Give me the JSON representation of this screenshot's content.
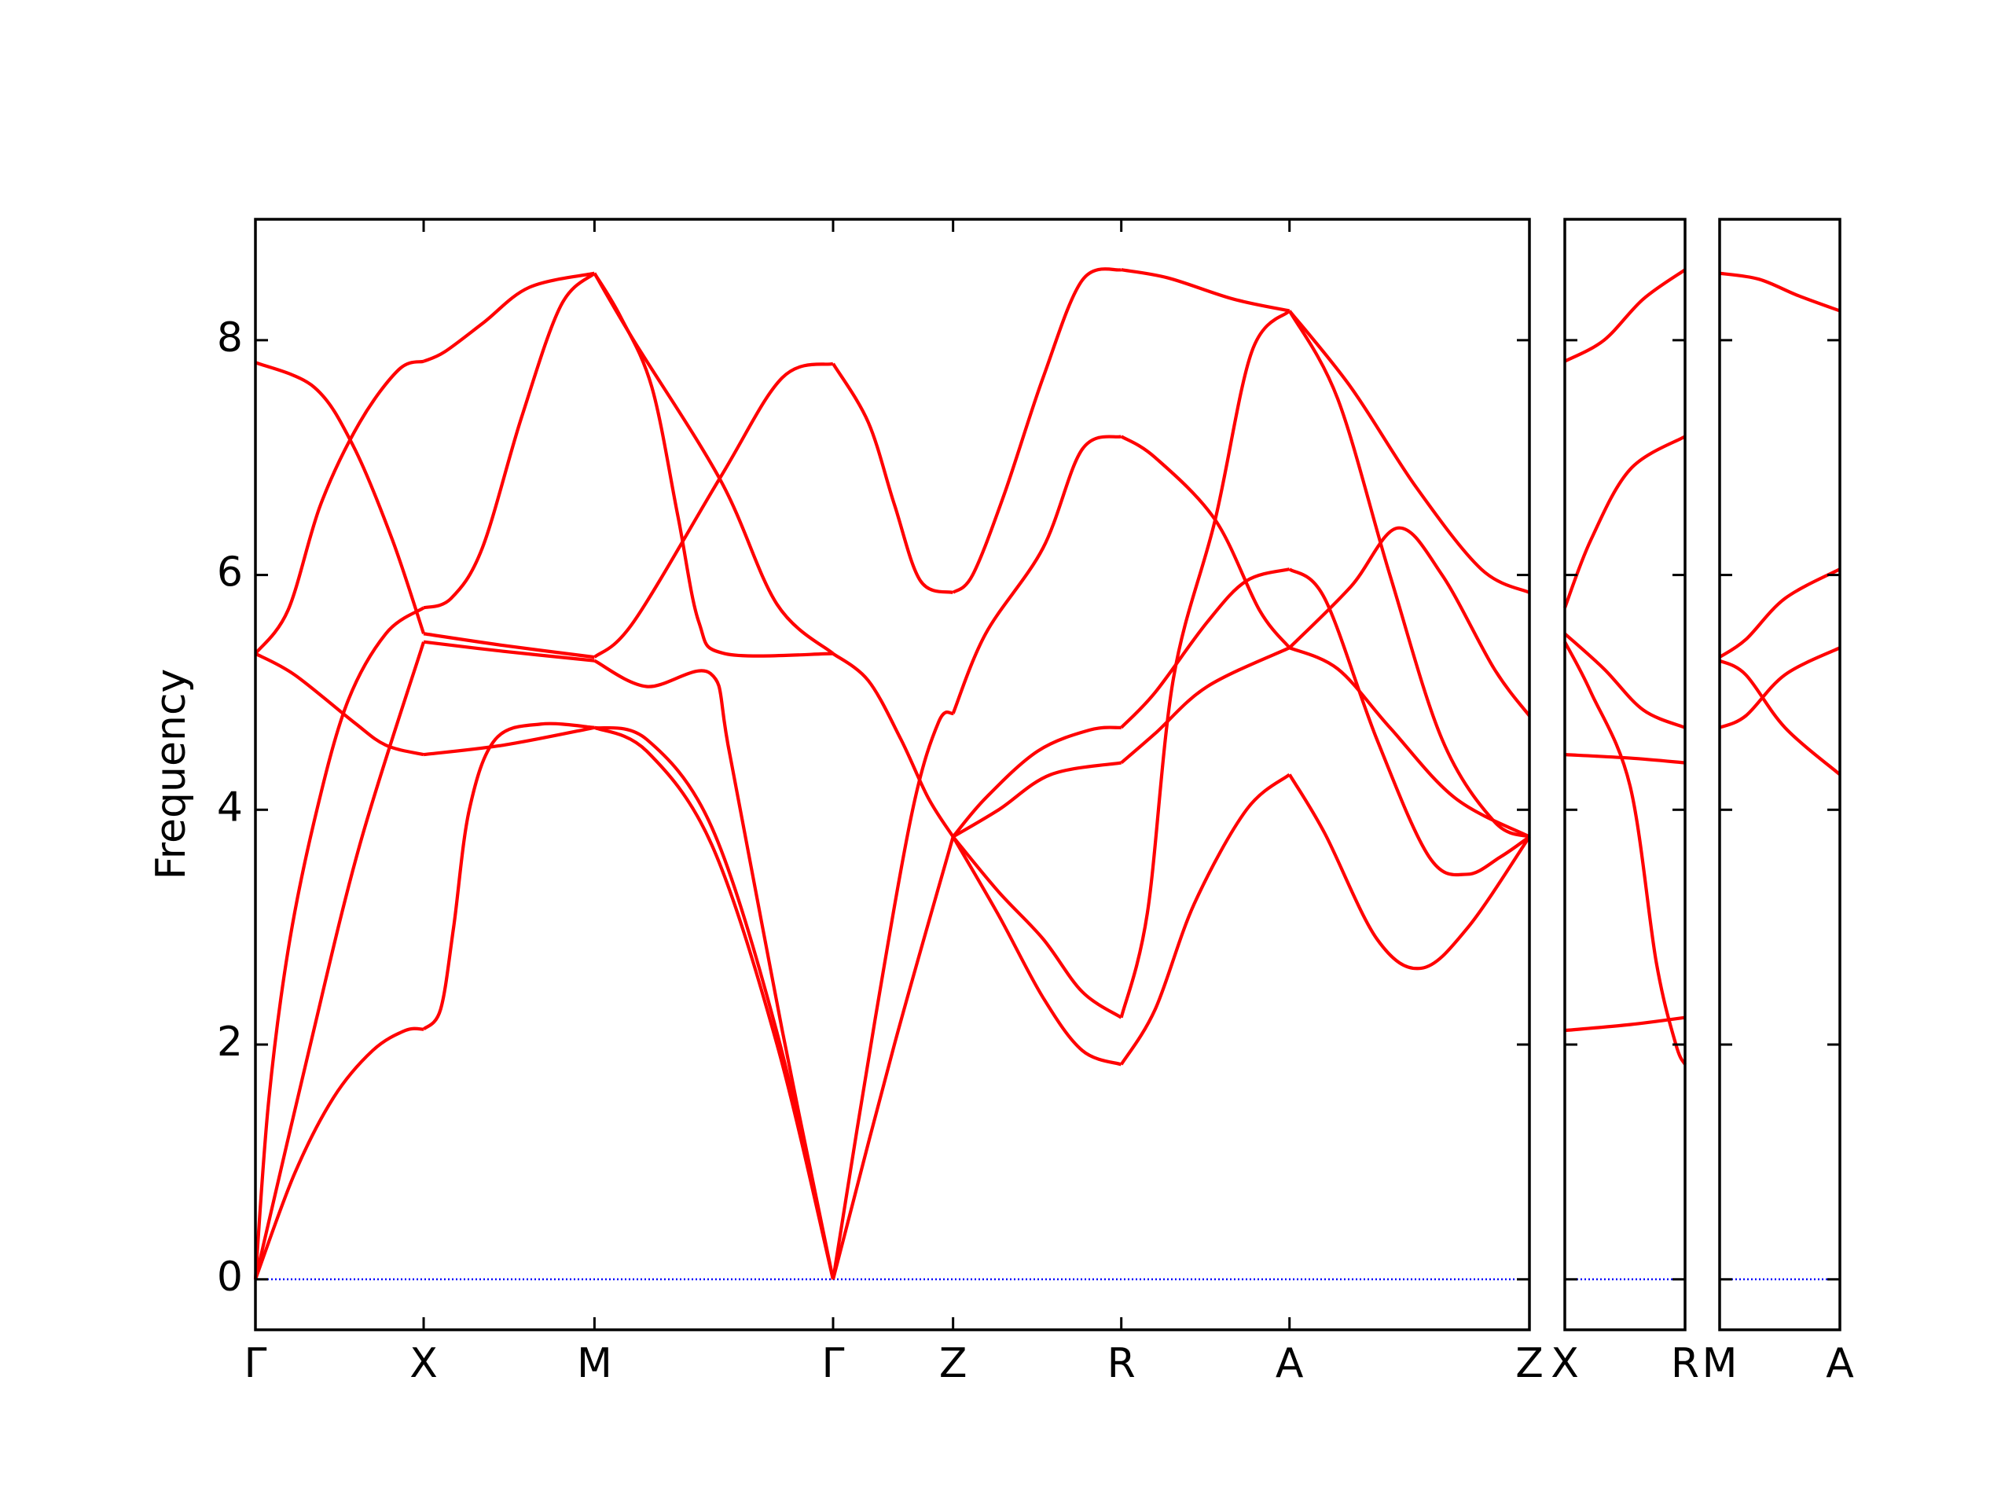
{
  "chart_data": [
    {
      "type": "line",
      "ylabel": "Frequency",
      "ylim": [
        -0.43,
        9.03
      ],
      "yticks": [
        0,
        2,
        4,
        6,
        8
      ],
      "zero_line_color": "#0000ff",
      "xlim": [
        0,
        9.77
      ],
      "xticks": [
        {
          "value": 0,
          "label": "Γ"
        },
        {
          "value": 1.29,
          "label": "X"
        },
        {
          "value": 2.6,
          "label": "M"
        },
        {
          "value": 4.43,
          "label": "Γ"
        },
        {
          "value": 5.35,
          "label": "Z"
        },
        {
          "value": 6.64,
          "label": "R"
        },
        {
          "value": 7.93,
          "label": "A"
        },
        {
          "value": 9.77,
          "label": "Z"
        }
      ],
      "series": [
        {
          "color": "#ff0000",
          "x": [
            0,
            0.45,
            0.75,
            1.05,
            1.29
          ],
          "values": [
            7.81,
            7.6,
            7.1,
            6.3,
            5.5
          ]
        },
        {
          "color": "#ff0000",
          "x": [
            0,
            0.25,
            0.5,
            0.8,
            1.1,
            1.29
          ],
          "values": [
            5.33,
            5.7,
            6.6,
            7.3,
            7.75,
            7.82
          ]
        },
        {
          "color": "#ff0000",
          "x": [
            0,
            0.3,
            0.75,
            1.0,
            1.29
          ],
          "values": [
            5.33,
            5.15,
            4.75,
            4.55,
            4.47
          ]
        },
        {
          "color": "#ff0000",
          "x": [
            0,
            0.1,
            0.25,
            0.45,
            0.7,
            1.0,
            1.29
          ],
          "values": [
            0,
            1.5,
            2.8,
            3.9,
            4.9,
            5.5,
            5.72
          ]
        },
        {
          "color": "#ff0000",
          "x": [
            0,
            0.4,
            0.8,
            1.29
          ],
          "values": [
            0,
            1.9,
            3.7,
            5.43
          ]
        },
        {
          "color": "#ff0000",
          "x": [
            0,
            0.3,
            0.6,
            0.9,
            1.15,
            1.29
          ],
          "values": [
            0,
            0.9,
            1.55,
            1.95,
            2.12,
            2.13
          ]
        },
        {
          "color": "#ff0000",
          "x": [
            1.29,
            1.45,
            1.75,
            2.1,
            2.6
          ],
          "values": [
            7.82,
            7.9,
            8.15,
            8.45,
            8.57
          ]
        },
        {
          "color": "#ff0000",
          "x": [
            1.29,
            1.5,
            1.74,
            2.04,
            2.34,
            2.6
          ],
          "values": [
            5.72,
            5.8,
            6.23,
            7.34,
            8.29,
            8.57
          ]
        },
        {
          "color": "#ff0000",
          "x": [
            1.29,
            1.9,
            2.6
          ],
          "values": [
            5.5,
            5.4,
            5.3
          ]
        },
        {
          "color": "#ff0000",
          "x": [
            1.29,
            1.9,
            2.6
          ],
          "values": [
            5.43,
            5.35,
            5.27
          ]
        },
        {
          "color": "#ff0000",
          "x": [
            1.29,
            1.9,
            2.6
          ],
          "values": [
            4.47,
            4.55,
            4.7
          ]
        },
        {
          "color": "#ff0000",
          "x": [
            1.29,
            1.42,
            1.52,
            1.64,
            1.84,
            2.19,
            2.6
          ],
          "values": [
            2.13,
            2.3,
            3.0,
            4.0,
            4.6,
            4.73,
            4.7
          ]
        },
        {
          "color": "#ff0000",
          "x": [
            2.6,
            2.8,
            3.04,
            3.24,
            3.4,
            3.6,
            4.43
          ],
          "values": [
            8.57,
            8.2,
            7.6,
            6.5,
            5.6,
            5.33,
            5.33
          ]
        },
        {
          "color": "#ff0000",
          "x": [
            2.6,
            2.9,
            3.57,
            4.0,
            4.43
          ],
          "values": [
            8.57,
            8.0,
            6.8,
            5.75,
            5.33
          ]
        },
        {
          "color": "#ff0000",
          "x": [
            2.6,
            2.9,
            3.57,
            4.04,
            4.43
          ],
          "values": [
            5.3,
            5.6,
            6.84,
            7.68,
            7.8
          ]
        },
        {
          "color": "#ff0000",
          "x": [
            2.6,
            3.0,
            3.49,
            3.64,
            4.04,
            4.43
          ],
          "values": [
            5.27,
            5.05,
            5.16,
            4.46,
            2.12,
            0
          ]
        },
        {
          "color": "#ff0000",
          "x": [
            2.6,
            3.0,
            3.5,
            4.0,
            4.43
          ],
          "values": [
            4.7,
            4.5,
            3.7,
            2.0,
            0
          ]
        },
        {
          "color": "#ff0000",
          "x": [
            2.6,
            3.0,
            3.5,
            4.0,
            4.43
          ],
          "values": [
            4.7,
            4.6,
            3.85,
            2.1,
            0
          ]
        },
        {
          "color": "#ff0000",
          "x": [
            4.43,
            4.7,
            4.9,
            5.1,
            5.35
          ],
          "values": [
            7.8,
            7.3,
            6.6,
            5.95,
            5.85
          ]
        },
        {
          "color": "#ff0000",
          "x": [
            4.43,
            4.7,
            4.95,
            5.16,
            5.35
          ],
          "values": [
            5.33,
            5.1,
            4.6,
            4.1,
            3.77
          ]
        },
        {
          "color": "#ff0000",
          "x": [
            4.43,
            4.75,
            5.04,
            5.24,
            5.35
          ],
          "values": [
            0,
            2.2,
            4.0,
            4.75,
            4.82
          ]
        },
        {
          "color": "#ff0000",
          "x": [
            4.43,
            4.9,
            5.35
          ],
          "values": [
            0,
            2.0,
            3.77
          ]
        },
        {
          "color": "#ff0000",
          "x": [
            5.35,
            5.5,
            5.74,
            6.04,
            6.34,
            6.64
          ],
          "values": [
            5.85,
            6.0,
            6.68,
            7.68,
            8.51,
            8.6
          ]
        },
        {
          "color": "#ff0000",
          "x": [
            5.35,
            5.6,
            6.04,
            6.34,
            6.64
          ],
          "values": [
            4.82,
            5.5,
            6.23,
            7.07,
            7.18
          ]
        },
        {
          "color": "#ff0000",
          "x": [
            5.35,
            5.6,
            6.0,
            6.4,
            6.64
          ],
          "values": [
            3.77,
            4.1,
            4.5,
            4.68,
            4.7
          ]
        },
        {
          "color": "#ff0000",
          "x": [
            5.35,
            5.7,
            6.1,
            6.64
          ],
          "values": [
            3.77,
            4.0,
            4.3,
            4.4
          ]
        },
        {
          "color": "#ff0000",
          "x": [
            5.35,
            5.7,
            6.04,
            6.34,
            6.64
          ],
          "values": [
            3.77,
            3.3,
            2.9,
            2.45,
            2.23
          ]
        },
        {
          "color": "#ff0000",
          "x": [
            5.35,
            5.7,
            6.04,
            6.34,
            6.64
          ],
          "values": [
            3.77,
            3.1,
            2.4,
            1.95,
            1.83
          ]
        },
        {
          "color": "#ff0000",
          "x": [
            6.64,
            7.0,
            7.5,
            7.93
          ],
          "values": [
            8.6,
            8.53,
            8.35,
            8.25
          ]
        },
        {
          "color": "#ff0000",
          "x": [
            6.64,
            6.9,
            7.36,
            7.7,
            7.93
          ],
          "values": [
            7.18,
            7.0,
            6.47,
            5.7,
            5.38
          ]
        },
        {
          "color": "#ff0000",
          "x": [
            6.64,
            6.84,
            7.04,
            7.36,
            7.64,
            7.93
          ],
          "values": [
            2.23,
            3.12,
            5.12,
            6.47,
            7.9,
            8.25
          ]
        },
        {
          "color": "#ff0000",
          "x": [
            6.64,
            6.9,
            7.3,
            7.6,
            7.93
          ],
          "values": [
            4.7,
            5.0,
            5.6,
            5.95,
            6.05
          ]
        },
        {
          "color": "#ff0000",
          "x": [
            6.64,
            6.9,
            7.3,
            7.93
          ],
          "values": [
            4.4,
            4.65,
            5.05,
            5.38
          ]
        },
        {
          "color": "#ff0000",
          "x": [
            6.64,
            6.9,
            7.2,
            7.6,
            7.93
          ],
          "values": [
            1.83,
            2.3,
            3.2,
            4.0,
            4.3
          ]
        },
        {
          "color": "#ff0000",
          "x": [
            7.93,
            8.4,
            8.9,
            9.4,
            9.77
          ],
          "values": [
            8.25,
            7.6,
            6.75,
            6.05,
            5.85
          ]
        },
        {
          "color": "#ff0000",
          "x": [
            7.93,
            8.3,
            8.7,
            9.1,
            9.5,
            9.77
          ],
          "values": [
            8.25,
            7.5,
            6.0,
            4.6,
            3.9,
            3.77
          ]
        },
        {
          "color": "#ff0000",
          "x": [
            7.93,
            8.4,
            8.76,
            9.1,
            9.5,
            9.77
          ],
          "values": [
            5.38,
            5.9,
            6.4,
            6.0,
            5.2,
            4.8
          ]
        },
        {
          "color": "#ff0000",
          "x": [
            7.93,
            8.2,
            8.6,
            9.0,
            9.29,
            9.55,
            9.77
          ],
          "values": [
            6.05,
            5.8,
            4.6,
            3.6,
            3.45,
            3.6,
            3.77
          ]
        },
        {
          "color": "#ff0000",
          "x": [
            7.93,
            8.3,
            8.7,
            9.2,
            9.77
          ],
          "values": [
            5.38,
            5.2,
            4.7,
            4.1,
            3.77
          ]
        },
        {
          "color": "#ff0000",
          "x": [
            7.93,
            8.2,
            8.6,
            8.94,
            9.3,
            9.77
          ],
          "values": [
            4.3,
            3.8,
            2.9,
            2.65,
            3.0,
            3.77
          ]
        }
      ]
    },
    {
      "type": "line",
      "zero_line_color": "#0000ff",
      "xlim": [
        0,
        0.92
      ],
      "xticks": [
        {
          "value": 0,
          "label": "X"
        },
        {
          "value": 0.92,
          "label": "R"
        }
      ],
      "series": [
        {
          "color": "#ff0000",
          "x": [
            0,
            0.3,
            0.6,
            0.92
          ],
          "values": [
            7.82,
            8.0,
            8.35,
            8.6
          ]
        },
        {
          "color": "#ff0000",
          "x": [
            0,
            0.2,
            0.5,
            0.92
          ],
          "values": [
            5.72,
            6.3,
            6.9,
            7.18
          ]
        },
        {
          "color": "#ff0000",
          "x": [
            0,
            0.3,
            0.6,
            0.92
          ],
          "values": [
            5.5,
            5.2,
            4.85,
            4.7
          ]
        },
        {
          "color": "#ff0000",
          "x": [
            0,
            0.2,
            0.5,
            0.7,
            0.85,
            0.92
          ],
          "values": [
            5.43,
            5.0,
            4.2,
            2.7,
            2.0,
            1.83
          ]
        },
        {
          "color": "#ff0000",
          "x": [
            0,
            0.5,
            0.92
          ],
          "values": [
            4.47,
            4.44,
            4.4
          ]
        },
        {
          "color": "#ff0000",
          "x": [
            0,
            0.5,
            0.92
          ],
          "values": [
            2.12,
            2.17,
            2.23
          ]
        }
      ]
    },
    {
      "type": "line",
      "zero_line_color": "#0000ff",
      "xlim": [
        0,
        0.92
      ],
      "xticks": [
        {
          "value": 0,
          "label": "M"
        },
        {
          "value": 0.92,
          "label": "A"
        }
      ],
      "series": [
        {
          "color": "#ff0000",
          "x": [
            0,
            0.3,
            0.6,
            0.92
          ],
          "values": [
            8.57,
            8.52,
            8.38,
            8.25
          ]
        },
        {
          "color": "#ff0000",
          "x": [
            0,
            0.2,
            0.5,
            0.92
          ],
          "values": [
            5.3,
            5.45,
            5.8,
            6.05
          ]
        },
        {
          "color": "#ff0000",
          "x": [
            0,
            0.2,
            0.5,
            0.92
          ],
          "values": [
            5.27,
            5.15,
            4.7,
            4.3
          ]
        },
        {
          "color": "#ff0000",
          "x": [
            0,
            0.2,
            0.5,
            0.92
          ],
          "values": [
            4.7,
            4.8,
            5.15,
            5.38
          ]
        }
      ]
    }
  ]
}
